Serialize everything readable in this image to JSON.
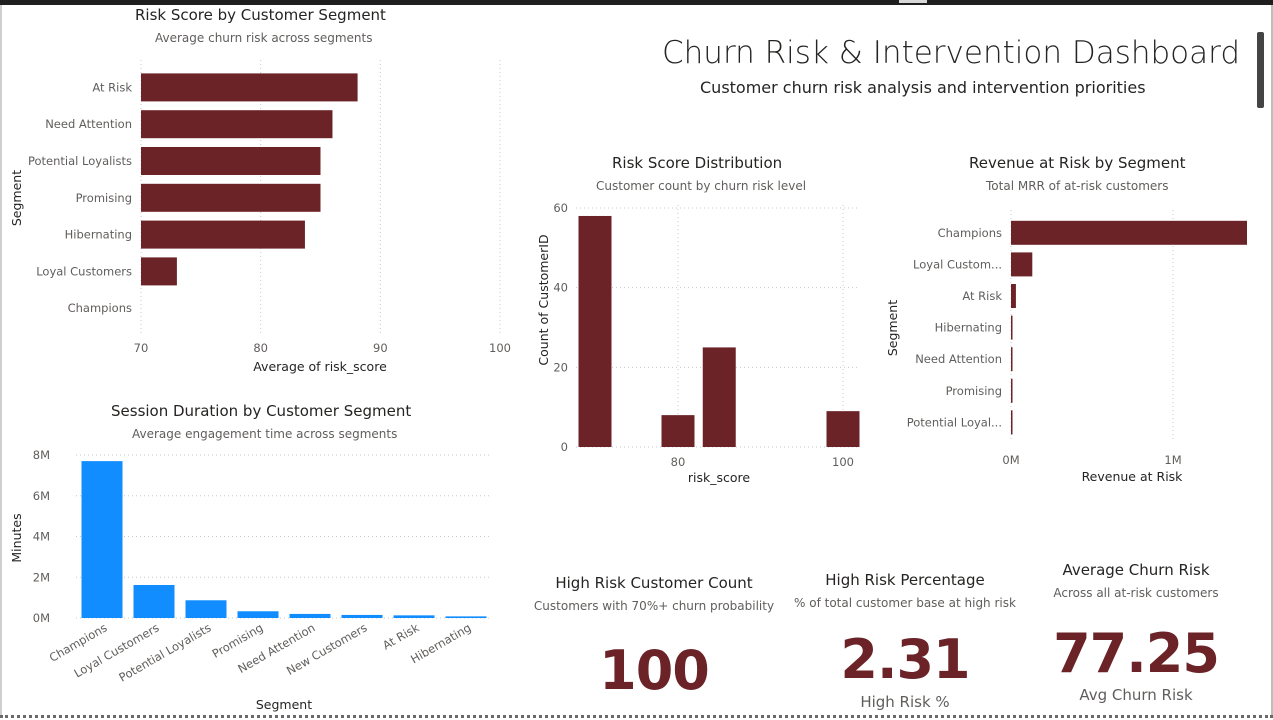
{
  "dashboard": {
    "title": "Churn Risk & Intervention Dashboard",
    "subtitle": "Customer churn risk analysis and intervention priorities"
  },
  "colors": {
    "maroon": "#6b2328",
    "blue": "#118dff"
  },
  "chart_data": [
    {
      "id": "risk-score-segment",
      "type": "bar",
      "orientation": "horizontal",
      "title": "Risk Score by Customer Segment",
      "subtitle": "Average churn risk across segments",
      "categories": [
        "At Risk",
        "Need Attention",
        "Potential Loyalists",
        "Promising",
        "Hibernating",
        "Loyal Customers",
        "Champions"
      ],
      "values": [
        88.1,
        86.0,
        85.0,
        85.0,
        83.7,
        73.0,
        70.0
      ],
      "xlabel": "Average of risk_score",
      "ylabel": "Segment",
      "xlim": [
        70,
        100
      ],
      "ticks": [
        "70",
        "80",
        "90",
        "100"
      ],
      "color": "#6b2328"
    },
    {
      "id": "session-duration-segment",
      "type": "bar",
      "title": "Session Duration by Customer Segment",
      "subtitle": "Average engagement time across segments",
      "categories": [
        "Champions",
        "Loyal Customers",
        "Potential Loyalists",
        "Promising",
        "Need Attention",
        "New Customers",
        "At Risk",
        "Hibernating"
      ],
      "values": [
        7700000,
        1620000,
        870000,
        330000,
        200000,
        150000,
        130000,
        80000
      ],
      "xlabel": "Segment",
      "ylabel": "Minutes",
      "ylim": [
        0,
        8000000
      ],
      "ticks": [
        "0M",
        "2M",
        "4M",
        "6M",
        "8M"
      ],
      "color": "#118dff"
    },
    {
      "id": "risk-score-distribution",
      "type": "bar",
      "title": "Risk Score Distribution",
      "subtitle": "Customer count by churn risk level",
      "x": [
        70,
        80,
        85,
        100
      ],
      "values": [
        58,
        8,
        25,
        9
      ],
      "xlabel": "risk_score",
      "ylabel": "Count of CustomerID",
      "ylim": [
        0,
        60
      ],
      "ticks_x": [
        "80",
        "100"
      ],
      "ticks_y": [
        "0",
        "20",
        "40",
        "60"
      ],
      "color": "#6b2328"
    },
    {
      "id": "revenue-at-risk",
      "type": "bar",
      "orientation": "horizontal",
      "title": "Revenue at Risk by Segment",
      "subtitle": "Total MRR of at-risk customers",
      "categories": [
        "Champions",
        "Loyal Custom...",
        "At Risk",
        "Hibernating",
        "Need Attention",
        "Promising",
        "Potential Loyal..."
      ],
      "values": [
        1440000,
        130000,
        30000,
        6000,
        5000,
        4000,
        3000
      ],
      "xlabel": "Revenue at Risk",
      "ylabel": "Segment",
      "xlim": [
        0,
        1440000
      ],
      "ticks": [
        "0M",
        "1M"
      ],
      "color": "#6b2328"
    }
  ],
  "cards": [
    {
      "title": "High Risk Customer Count",
      "subtitle": "Customers with 70%+ churn probability",
      "value": "100",
      "label": ""
    },
    {
      "title": "High Risk Percentage",
      "subtitle": "% of total customer base at high risk",
      "value": "2.31",
      "label": "High Risk %"
    },
    {
      "title": "Average Churn Risk",
      "subtitle": "Across all at-risk customers",
      "value": "77.25",
      "label": "Avg Churn Risk"
    }
  ]
}
